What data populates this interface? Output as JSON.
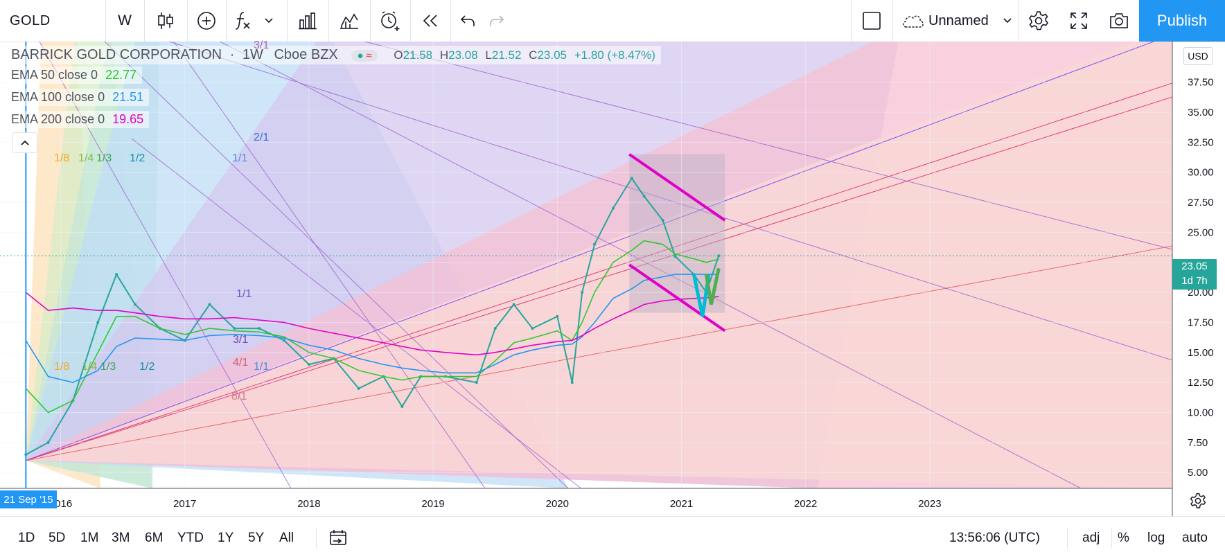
{
  "toolbar": {
    "symbol": "GOLD",
    "interval": "W",
    "layout_name": "Unnamed",
    "publish_label": "Publish",
    "icons": [
      "candles-icon",
      "add-compare-icon",
      "indicators-icon",
      "chevron-down-icon",
      "financials-icon",
      "templates-icon",
      "alert-icon",
      "replay-icon",
      "undo-icon",
      "redo-icon",
      "layout-icon",
      "cloud-icon",
      "chevron-down-icon",
      "settings-icon",
      "fullscreen-icon",
      "camera-icon"
    ]
  },
  "legend": {
    "title": "BARRICK GOLD CORPORATION",
    "sep1": "·",
    "interval": "1W",
    "exchange": "Cboe BZX",
    "ohlc": {
      "o_label": "O",
      "o": "21.58",
      "h_label": "H",
      "h": "23.08",
      "l_label": "L",
      "l": "21.52",
      "c_label": "C",
      "c": "23.05",
      "change": "+1.80 (+8.47%)"
    },
    "indicators": [
      {
        "label": "EMA 50 close 0",
        "value": "22.77",
        "color": "#2ec92e"
      },
      {
        "label": "EMA 100 close 0",
        "value": "21.51",
        "color": "#2196f3"
      },
      {
        "label": "EMA 200 close 0",
        "value": "19.65",
        "color": "#e000c8"
      }
    ]
  },
  "price_scale": {
    "currency": "USD",
    "last_price": "23.05",
    "countdown": "1d 7h",
    "last_price_color": "#26a69a"
  },
  "time_scale": {
    "start_label": "21 Sep '15"
  },
  "fan_labels": {
    "upper_left": [
      "1/8",
      "1/4",
      "1/3",
      "1/2"
    ],
    "lower_left": [
      "1/8",
      "1/4",
      "1/3",
      "1/2"
    ],
    "top_center": "3/1",
    "blue_left": [
      "2/1",
      "1/1"
    ],
    "mid_center": [
      "1/1",
      "3/1",
      "4/1",
      "1/1",
      "8/1"
    ]
  },
  "bottom": {
    "ranges": [
      "1D",
      "5D",
      "1M",
      "3M",
      "6M",
      "YTD",
      "1Y",
      "5Y",
      "All"
    ],
    "time": "13:56:06 (UTC)",
    "toggles": [
      "adj",
      "%",
      "log",
      "auto"
    ]
  },
  "chart_data": {
    "type": "line",
    "title": "BARRICK GOLD CORPORATION · 1W · Cboe BZX",
    "x_ticks": [
      "2016",
      "2017",
      "2018",
      "2019",
      "2020",
      "2021",
      "2022",
      "2023"
    ],
    "y_ticks": [
      "5.00",
      "7.50",
      "10.00",
      "12.50",
      "15.00",
      "17.50",
      "20.00",
      "22.50",
      "25.00",
      "27.50",
      "30.00",
      "32.50",
      "35.00",
      "37.50"
    ],
    "ylim": [
      3.8,
      41
    ],
    "x": [
      2015.72,
      2015.9,
      2016.1,
      2016.3,
      2016.45,
      2016.6,
      2016.8,
      2017.0,
      2017.2,
      2017.4,
      2017.6,
      2017.8,
      2018.0,
      2018.2,
      2018.4,
      2018.6,
      2018.75,
      2018.9,
      2019.1,
      2019.35,
      2019.5,
      2019.65,
      2019.8,
      2020.0,
      2020.12,
      2020.2,
      2020.3,
      2020.45,
      2020.6,
      2020.7,
      2020.85,
      2020.95,
      2021.1,
      2021.2,
      2021.3
    ],
    "series": [
      {
        "values": [
          6.5,
          7.5,
          11,
          17.5,
          21.5,
          19,
          17,
          16,
          19,
          17,
          17,
          16,
          14,
          14.5,
          12,
          13,
          10.5,
          13,
          13,
          12.5,
          17,
          19,
          17,
          18,
          12.5,
          20,
          24,
          27,
          29.5,
          28,
          26,
          23,
          21.5,
          20,
          23.05
        ],
        "color": "#26a69a"
      },
      {
        "name": "EMA 50 close 0",
        "values": [
          12,
          10,
          11,
          15,
          18,
          18,
          17,
          16.5,
          17,
          16.8,
          16.7,
          16.3,
          15,
          14.5,
          13.5,
          13,
          12.7,
          13,
          13,
          13,
          14.3,
          15.8,
          16.2,
          16.8,
          16,
          17.5,
          20,
          22.5,
          23.5,
          24.3,
          24,
          23.2,
          22.8,
          22.5,
          22.77
        ],
        "color": "#2ec92e"
      },
      {
        "name": "EMA 100 close 0",
        "values": [
          16,
          13,
          12.5,
          13.5,
          15.5,
          16.2,
          16.1,
          16,
          16.4,
          16.5,
          16.4,
          16.2,
          15.6,
          15.2,
          14.5,
          14,
          13.7,
          13.5,
          13.3,
          13.3,
          14,
          14.8,
          15.2,
          15.6,
          15.7,
          16.3,
          17.5,
          19.5,
          20.3,
          21,
          21.3,
          21.5,
          21.5,
          21.5,
          21.51
        ],
        "color": "#2196f3"
      },
      {
        "name": "EMA 200 close 0",
        "values": [
          20,
          18.5,
          18.7,
          18.5,
          18.5,
          18.3,
          18,
          17.8,
          17.8,
          17.9,
          17.7,
          17.5,
          17,
          16.6,
          16.2,
          15.8,
          15.5,
          15.2,
          15,
          14.8,
          15,
          15.3,
          15.6,
          15.9,
          16,
          16.4,
          17,
          17.8,
          18.5,
          19,
          19.3,
          19.4,
          19.5,
          19.55,
          19.65
        ],
        "color": "#e000c8"
      }
    ],
    "grid": true,
    "legend_position": "top-left"
  }
}
